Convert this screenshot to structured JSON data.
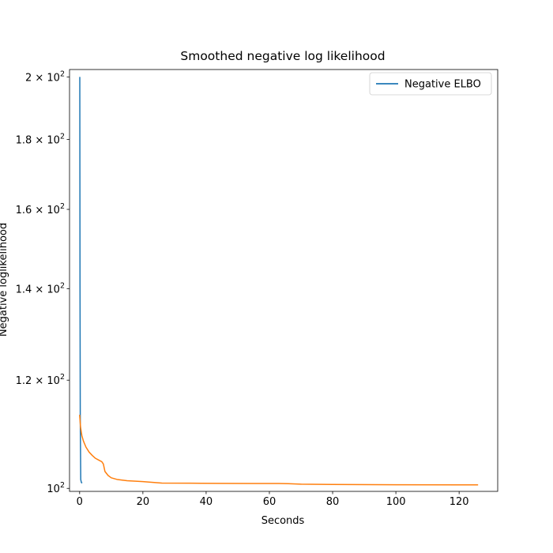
{
  "chart_data": {
    "type": "line",
    "title": "Smoothed negative log likelihood",
    "xlabel": "Seconds",
    "ylabel": "Negative loglikelihood",
    "xlim": [
      -3.2,
      132.2
    ],
    "ylim": [
      99.5,
      202.5
    ],
    "yscale": "log",
    "grid": false,
    "legend_position": "top-right",
    "x_ticks": [
      {
        "value": 0,
        "label": "0"
      },
      {
        "value": 20,
        "label": "20"
      },
      {
        "value": 40,
        "label": "40"
      },
      {
        "value": 60,
        "label": "60"
      },
      {
        "value": 80,
        "label": "80"
      },
      {
        "value": 100,
        "label": "100"
      },
      {
        "value": 120,
        "label": "120"
      }
    ],
    "y_ticks": [
      {
        "value": 100,
        "base": "10",
        "exp": "2",
        "coef": ""
      },
      {
        "value": 120,
        "base": "10",
        "exp": "2",
        "coef": "1.2 × "
      },
      {
        "value": 140,
        "base": "10",
        "exp": "2",
        "coef": "1.4 × "
      },
      {
        "value": 160,
        "base": "10",
        "exp": "2",
        "coef": "1.6 × "
      },
      {
        "value": 180,
        "base": "10",
        "exp": "2",
        "coef": "1.8 × "
      },
      {
        "value": 200,
        "base": "10",
        "exp": "2",
        "coef": "2 × "
      }
    ],
    "series": [
      {
        "name": "Negative ELBO",
        "color": "#1f77b4",
        "in_legend": true,
        "x": [
          0.05,
          0.08,
          0.12,
          0.2,
          0.35,
          0.55,
          0.8
        ],
        "y": [
          200,
          170,
          140,
          112,
          101.5,
          101.0,
          100.9
        ]
      },
      {
        "color": "#ff7f0e",
        "in_legend": false,
        "x": [
          0,
          0.3,
          0.7,
          1.2,
          2,
          3,
          4,
          5,
          6,
          7,
          7.5,
          8,
          9,
          10,
          12,
          15,
          20,
          26,
          35,
          45,
          55,
          63,
          66,
          70,
          80,
          100,
          120,
          126
        ],
        "y": [
          113.2,
          110.8,
          109.3,
          108.3,
          107.2,
          106.3,
          105.7,
          105.2,
          104.9,
          104.6,
          104.2,
          102.9,
          102.2,
          101.8,
          101.5,
          101.3,
          101.15,
          100.9,
          100.88,
          100.85,
          100.83,
          100.83,
          100.8,
          100.72,
          100.66,
          100.62,
          100.6,
          100.6
        ]
      }
    ]
  }
}
